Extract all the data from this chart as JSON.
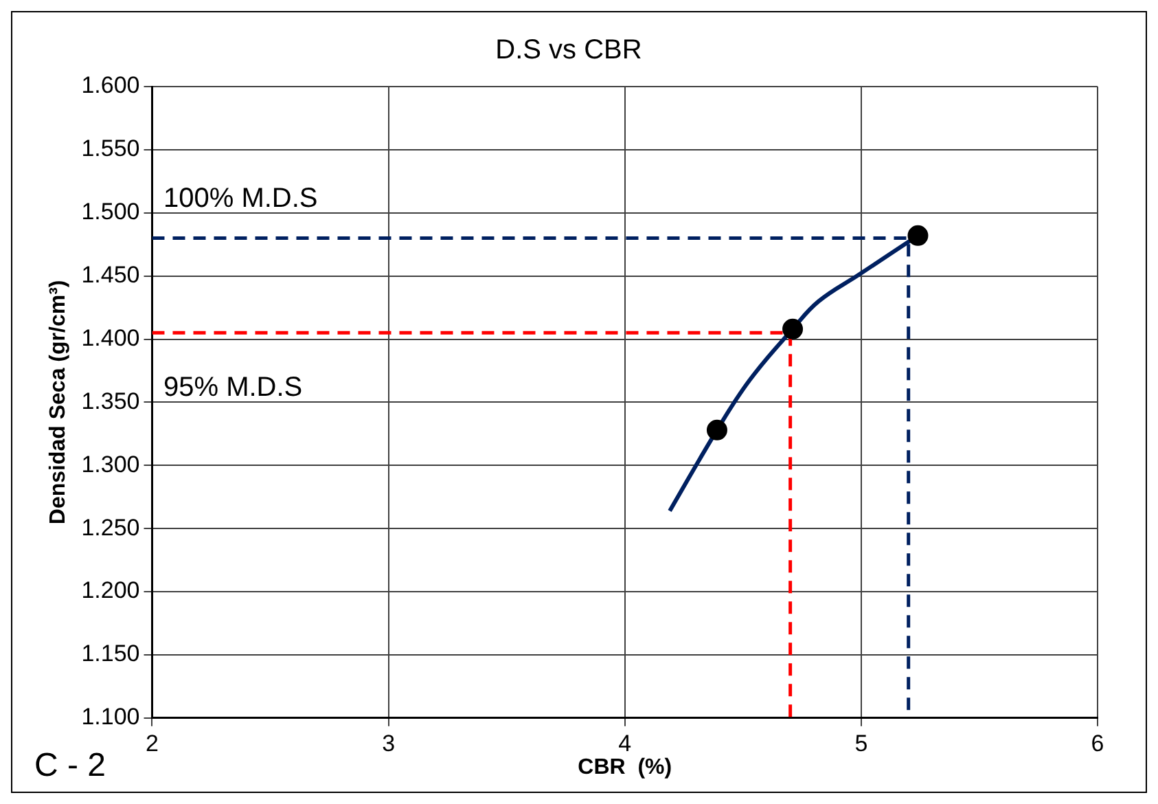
{
  "chart_data": {
    "type": "scatter",
    "title": "D.S vs CBR",
    "xlabel": "CBR  (%)",
    "ylabel": "Densidad Seca (gr/cm³)",
    "xlim": [
      2,
      6
    ],
    "xticks": [
      2,
      3,
      4,
      5,
      6
    ],
    "ylim": [
      1.1,
      1.6
    ],
    "yticks": [
      {
        "value": 1.1,
        "label": "1.100"
      },
      {
        "value": 1.15,
        "label": "1.150"
      },
      {
        "value": 1.2,
        "label": "1.200"
      },
      {
        "value": 1.25,
        "label": "1.250"
      },
      {
        "value": 1.3,
        "label": "1.300"
      },
      {
        "value": 1.35,
        "label": "1.350"
      },
      {
        "value": 1.4,
        "label": "1.400"
      },
      {
        "value": 1.45,
        "label": "1.450"
      },
      {
        "value": 1.5,
        "label": "1.500"
      },
      {
        "value": 1.55,
        "label": "1.550"
      },
      {
        "value": 1.6,
        "label": "1.600"
      }
    ],
    "grid": true,
    "legend": false,
    "series": [
      {
        "type": "line",
        "color": "#002060",
        "marker": "none",
        "line_style": "solid",
        "x": [
          4.19,
          4.39,
          4.53,
          4.71,
          4.82,
          4.99,
          5.24
        ],
        "values": [
          1.264,
          1.328,
          1.368,
          1.408,
          1.43,
          1.451,
          1.482
        ]
      },
      {
        "type": "line",
        "color": "#002060",
        "marker": "none",
        "line_style": "dashed",
        "x": [
          2,
          5.2,
          5.2
        ],
        "values": [
          1.48,
          1.48,
          1.1
        ]
      },
      {
        "type": "line",
        "color": "#ff0000",
        "marker": "none",
        "line_style": "dashed",
        "x": [
          2,
          4.7,
          4.7
        ],
        "values": [
          1.405,
          1.405,
          1.1
        ]
      },
      {
        "type": "scatter",
        "color": "#000000",
        "marker": "circle",
        "x": [
          4.39,
          4.71,
          5.24
        ],
        "values": [
          1.328,
          1.408,
          1.482
        ]
      }
    ],
    "annotations": [
      "100% M.D.S",
      "95% M.D.S",
      "C - 2"
    ]
  }
}
